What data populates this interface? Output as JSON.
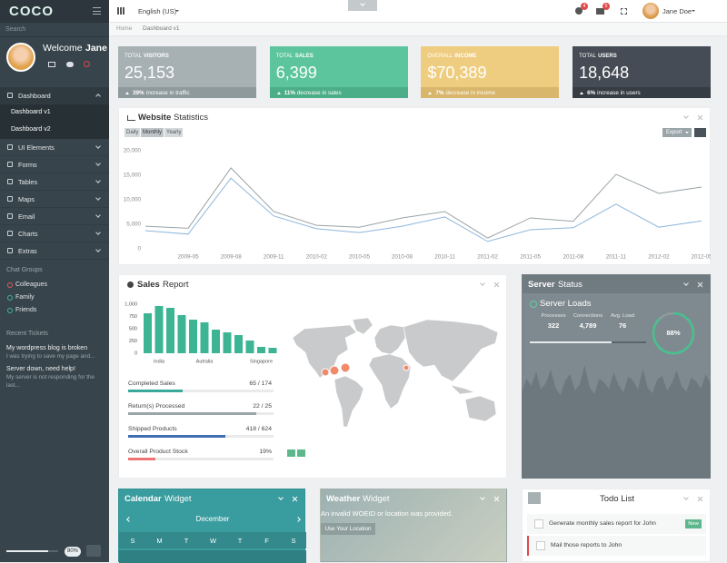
{
  "brand": "COCO",
  "topbar": {
    "language": "English (US)",
    "badges": [
      "4",
      "5"
    ],
    "user": "Jane Doe"
  },
  "breadcrumb": [
    "Home",
    "Dashboard v1"
  ],
  "sidebar": {
    "search": "Search",
    "welcome": "Welcome",
    "user": "Jane",
    "nav": [
      {
        "label": "Dashboard",
        "children": [
          "Dashboard v1",
          "Dashboard v2"
        ]
      },
      {
        "label": "UI Elements"
      },
      {
        "label": "Forms"
      },
      {
        "label": "Tables"
      },
      {
        "label": "Maps"
      },
      {
        "label": "Email"
      },
      {
        "label": "Charts"
      },
      {
        "label": "Extras"
      }
    ],
    "chat_title": "Chat Groups",
    "chat_groups": [
      {
        "name": "Colleagues",
        "color": "#e05c5c"
      },
      {
        "name": "Family",
        "color": "#3db594"
      },
      {
        "name": "Friends",
        "color": "#3db594"
      }
    ],
    "tickets_title": "Recent Tickets",
    "tickets": [
      {
        "title": "My wordpress blog is broken",
        "text": "I was trying to save my page and..."
      },
      {
        "title": "Server down, need help!",
        "text": "My server is not responding for the last..."
      }
    ],
    "progress": {
      "value": 80,
      "value_label": "80%"
    }
  },
  "stats": [
    {
      "label_light": "TOTAL",
      "label_bold": "VISITORS",
      "value": "25,153",
      "change": "39%",
      "note": "increase in traffic",
      "color": "#a7b1b3",
      "footer_color": "#8f9a9d"
    },
    {
      "label_light": "TOTAL",
      "label_bold": "SALES",
      "value": "6,399",
      "change": "11%",
      "note": "decrease in sales",
      "color": "#5cc59d",
      "footer_color": "#4cae89"
    },
    {
      "label_light": "OVERALL",
      "label_bold": "INCOME",
      "value": "$70,389",
      "change": "7%",
      "note": "decrease in income",
      "color": "#efcd80",
      "footer_color": "#d8b66b"
    },
    {
      "label_light": "TOTAL",
      "label_bold": "USERS",
      "value": "18,648",
      "change": "6%",
      "note": "increase in users",
      "color": "#454c55",
      "footer_color": "#363c44"
    }
  ],
  "chart_data": [
    {
      "type": "line",
      "title_strong": "Website",
      "title_rest": "Statistics",
      "buttons": [
        "Daily",
        "Monthly",
        "Yearly"
      ],
      "export": "Export",
      "categories": [
        null,
        "2009-05",
        "2009-08",
        "2009-11",
        "2010-02",
        "2010-05",
        "2010-08",
        "2010-11",
        "2011-02",
        "2011-05",
        "2011-08",
        "2011-11",
        "2012-02",
        "2012-05"
      ],
      "series": [
        {
          "color": "#9aa3a7",
          "values": [
            4600,
            4200,
            16500,
            7600,
            4800,
            4400,
            6300,
            7600,
            2200,
            6300,
            5600,
            15200,
            11300,
            12600
          ]
        },
        {
          "color": "#8cb6dc",
          "values": [
            3700,
            3000,
            14400,
            6700,
            4100,
            3300,
            4600,
            6500,
            1500,
            3900,
            4300,
            9100,
            4400,
            5700
          ]
        }
      ],
      "ylim": [
        0,
        20000
      ],
      "yticks": [
        0,
        {
          "value": 5000,
          "label": "5,000"
        },
        {
          "value": 10000,
          "label": "10,000"
        },
        {
          "value": 15000,
          "label": "15,000"
        },
        {
          "value": 20000,
          "label": "20,000"
        }
      ]
    },
    {
      "type": "bar",
      "title_strong": "Sales",
      "title_rest": "Report",
      "categories": [
        null,
        "India",
        null,
        null,
        null,
        "Autralia",
        null,
        null,
        null,
        null,
        "Singapore",
        null
      ],
      "values": [
        815,
        963,
        926,
        778,
        685,
        630,
        481,
        426,
        370,
        259,
        130,
        111
      ],
      "color": "#3db594",
      "ylim": [
        0,
        1000
      ],
      "yticks": [
        0,
        250,
        500,
        750,
        {
          "value": 1000,
          "label": "1,000"
        }
      ]
    }
  ],
  "sales_progress": [
    {
      "label": "Completed Sales",
      "value": 65,
      "total": 174,
      "value_label": "65 / 174",
      "color": "#3aa99a"
    },
    {
      "label": "Return(s) Processed",
      "value": 22,
      "total": 25,
      "value_label": "22 / 25",
      "color": "#9aa5a9"
    },
    {
      "label": "Shipped Products",
      "value": 418,
      "total": 624,
      "value_label": "418 / 624",
      "color": "#3f6fb0"
    },
    {
      "label": "Overall Product Stock",
      "value": 19,
      "value_label": "19%",
      "color": "#ee7474"
    }
  ],
  "server": {
    "title_strong": "Server",
    "title_rest": "Status",
    "subtitle": "Server Loads",
    "metrics": [
      {
        "label": "Processes",
        "value": "322"
      },
      {
        "label": "Connections",
        "value": "4,789"
      },
      {
        "label": "Avg. Load",
        "value": "76"
      }
    ],
    "load": {
      "value": 88,
      "value_label": "88%"
    },
    "history": [
      95,
      110,
      102,
      118,
      98,
      105,
      120,
      100,
      92,
      108,
      115,
      97,
      104,
      125,
      101,
      93,
      110,
      106,
      99,
      117,
      103,
      95,
      112,
      108,
      98,
      121,
      100,
      94,
      109,
      113,
      97,
      105,
      119,
      102,
      96,
      111,
      107,
      99,
      115,
      104
    ]
  },
  "calendar": {
    "title_strong": "Calendar",
    "title_rest": "Widget",
    "month": "December",
    "weekdays": [
      "S",
      "M",
      "T",
      "W",
      "T",
      "F",
      "S"
    ]
  },
  "weather": {
    "title_strong": "Weather",
    "title_rest": "Widget",
    "message": "An invalid WOEID or location was provided.",
    "button": "Use Your Location"
  },
  "todo": {
    "title": "Todo List",
    "items": [
      {
        "text": "Generate monthly sales report for John",
        "badge": "New"
      },
      {
        "text": "Mail those reports to John"
      }
    ]
  }
}
